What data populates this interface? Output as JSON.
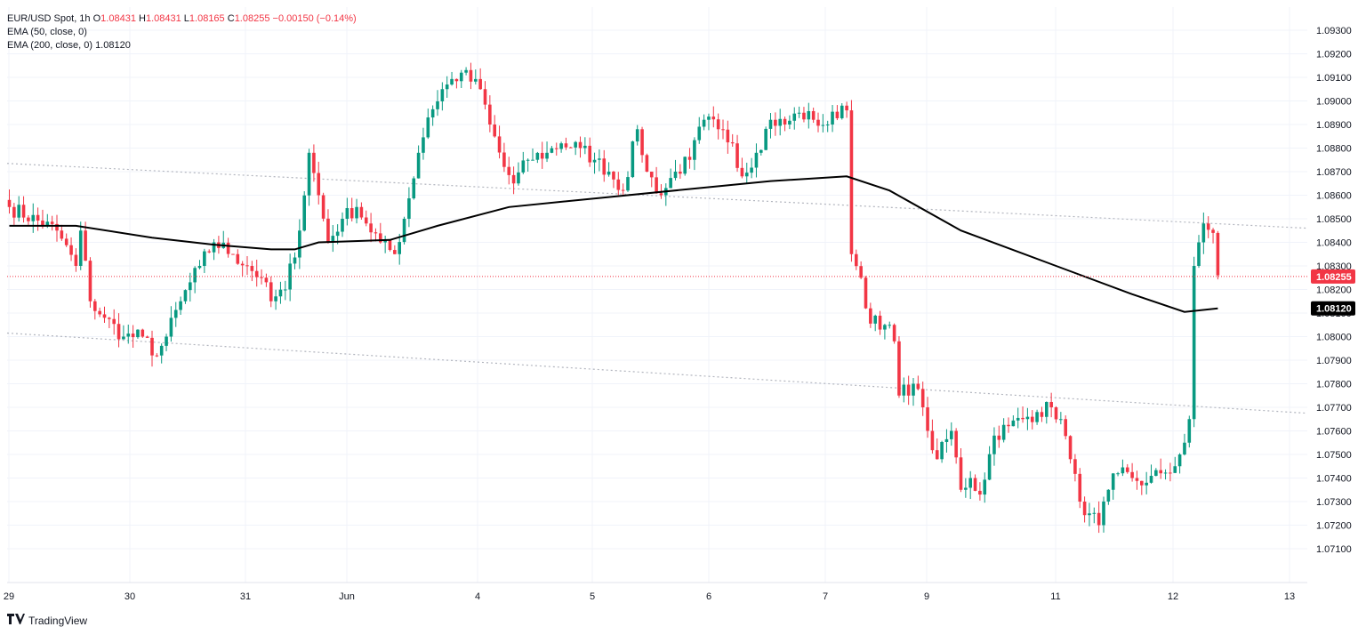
{
  "legend": {
    "symbol": "EUR/USD Spot, 1h",
    "o_label": "O",
    "o": "1.08431",
    "h_label": "H",
    "h": "1.08431",
    "l_label": "L",
    "l": "1.08165",
    "c_label": "C",
    "c": "1.08255",
    "change": "−0.00150 (−0.14%)",
    "ema50": "EMA (50, close, 0)",
    "ema200": "EMA (200, close, 0)",
    "ema200_value": "1.08120"
  },
  "brand": {
    "name": "TradingView",
    "icon": "tradingview-logo-icon"
  },
  "colors": {
    "up": "#089981",
    "down": "#f23645",
    "ema": "#000000",
    "grid": "#f0f3fa",
    "last_price": "#f23645",
    "trendline": "#b2b5be"
  },
  "chart_data": {
    "type": "candlestick",
    "title": "EUR/USD Spot, 1h",
    "ylim": [
      1.07,
      1.0935
    ],
    "y_ticks": [
      "1.09300",
      "1.09200",
      "1.09100",
      "1.09000",
      "1.08900",
      "1.08800",
      "1.08700",
      "1.08600",
      "1.08500",
      "1.08400",
      "1.08300",
      "1.08200",
      "1.08100",
      "1.08000",
      "1.07900",
      "1.07800",
      "1.07700",
      "1.07600",
      "1.07500",
      "1.07400",
      "1.07300",
      "1.07200",
      "1.07100"
    ],
    "x_ticks": [
      "29",
      "30",
      "31",
      "Jun",
      "4",
      "5",
      "6",
      "7",
      "9",
      "11",
      "12",
      "13"
    ],
    "last_price_label": "1.08255",
    "ema200_label": "1.08120",
    "waypoints": [
      [
        0,
        1.0855
      ],
      [
        10,
        1.0845
      ],
      [
        14,
        1.083
      ],
      [
        15,
        1.0845
      ],
      [
        17,
        1.0815
      ],
      [
        20,
        1.0808
      ],
      [
        24,
        1.08
      ],
      [
        28,
        1.08
      ],
      [
        31,
        1.0792
      ],
      [
        33,
        1.08
      ],
      [
        36,
        1.0815
      ],
      [
        40,
        1.083
      ],
      [
        43,
        1.084
      ],
      [
        47,
        1.0835
      ],
      [
        50,
        1.083
      ],
      [
        53,
        1.0825
      ],
      [
        55,
        1.0815
      ],
      [
        58,
        1.082
      ],
      [
        61,
        1.0845
      ],
      [
        63,
        1.0878
      ],
      [
        65,
        1.086
      ],
      [
        67,
        1.084
      ],
      [
        70,
        1.085
      ],
      [
        73,
        1.0855
      ],
      [
        75,
        1.0848
      ],
      [
        78,
        1.084
      ],
      [
        81,
        1.0835
      ],
      [
        83,
        1.085
      ],
      [
        86,
        1.0878
      ],
      [
        88,
        1.0893
      ],
      [
        91,
        1.0905
      ],
      [
        95,
        1.0912
      ],
      [
        99,
        1.0905
      ],
      [
        101,
        1.089
      ],
      [
        104,
        1.0872
      ],
      [
        106,
        1.0865
      ],
      [
        109,
        1.0875
      ],
      [
        113,
        1.0878
      ],
      [
        116,
        1.0882
      ],
      [
        120,
        1.088
      ],
      [
        123,
        1.0875
      ],
      [
        126,
        1.087
      ],
      [
        129,
        1.0862
      ],
      [
        132,
        1.0888
      ],
      [
        134,
        1.087
      ],
      [
        137,
        1.086
      ],
      [
        140,
        1.087
      ],
      [
        143,
        1.0875
      ],
      [
        146,
        1.0892
      ],
      [
        149,
        1.0888
      ],
      [
        152,
        1.0882
      ],
      [
        154,
        1.0868
      ],
      [
        157,
        1.0878
      ],
      [
        160,
        1.0892
      ],
      [
        163,
        1.089
      ],
      [
        166,
        1.0895
      ],
      [
        169,
        1.0892
      ],
      [
        172,
        1.089
      ],
      [
        175,
        1.0898
      ],
      [
        176,
        1.0896
      ],
      [
        177,
        1.0835
      ],
      [
        179,
        1.0825
      ],
      [
        180,
        1.0812
      ],
      [
        183,
        1.0803
      ],
      [
        185,
        1.0805
      ],
      [
        186,
        1.0798
      ],
      [
        187,
        1.0775
      ],
      [
        190,
        1.078
      ],
      [
        192,
        1.077
      ],
      [
        193,
        1.076
      ],
      [
        195,
        1.0748
      ],
      [
        198,
        1.076
      ],
      [
        200,
        1.0735
      ],
      [
        202,
        1.074
      ],
      [
        204,
        1.0733
      ],
      [
        207,
        1.0758
      ],
      [
        210,
        1.0762
      ],
      [
        213,
        1.0765
      ],
      [
        216,
        1.0768
      ],
      [
        219,
        1.077
      ],
      [
        221,
        1.0765
      ],
      [
        223,
        1.0748
      ],
      [
        225,
        1.073
      ],
      [
        227,
        1.0725
      ],
      [
        229,
        1.072
      ],
      [
        231,
        1.0735
      ],
      [
        233,
        1.0742
      ],
      [
        236,
        1.074
      ],
      [
        239,
        1.0738
      ],
      [
        242,
        1.0742
      ],
      [
        245,
        1.0745
      ],
      [
        246,
        1.075
      ],
      [
        247,
        1.0755
      ],
      [
        248,
        1.0765
      ],
      [
        249,
        1.083
      ],
      [
        250,
        1.084
      ],
      [
        251,
        1.0848
      ],
      [
        253,
        1.0844
      ],
      [
        254,
        1.0826
      ]
    ]
  }
}
